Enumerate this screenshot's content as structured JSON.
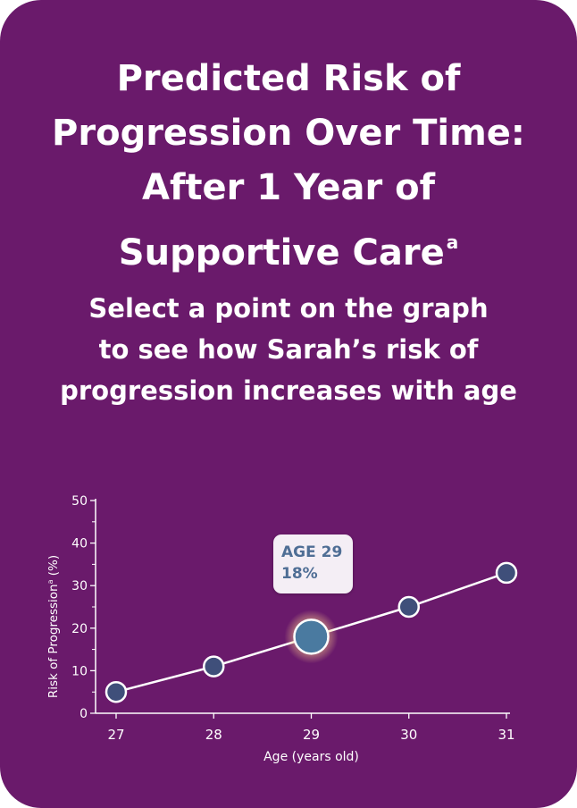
{
  "card": {
    "title_lines": [
      "Predicted Risk of",
      "Progression Over Time:",
      "After 1 Year of",
      "Supportive Care"
    ],
    "title_superscript": "a",
    "subtitle_lines": [
      "Select a point on the graph",
      "to see how Sarah’s risk of",
      "progression increases with age"
    ]
  },
  "tooltip": {
    "age_label": "AGE 29",
    "value_label": "18%"
  },
  "colors": {
    "background": "#6a1a6b",
    "point_fill": "#3f4f7a",
    "selected_point_fill": "#4a7aa0",
    "line": "#ffffff",
    "tooltip_text": "#4f6e95",
    "tooltip_bg": "#f4eef5"
  },
  "chart_data": {
    "type": "line",
    "x": [
      27,
      28,
      29,
      30,
      31
    ],
    "y": [
      5,
      11,
      18,
      25,
      33
    ],
    "xlabel": "Age (years old)",
    "ylabel": "Risk of Progression",
    "ylabel_superscript": "a",
    "ylabel_unit": "(%)",
    "x_ticks": [
      "27",
      "28",
      "29",
      "30",
      "31"
    ],
    "y_ticks": [
      "0",
      "10",
      "20",
      "30",
      "40",
      "50"
    ],
    "xlim": [
      27,
      31
    ],
    "ylim": [
      0,
      50
    ],
    "selected_index": 2,
    "grid": false
  }
}
